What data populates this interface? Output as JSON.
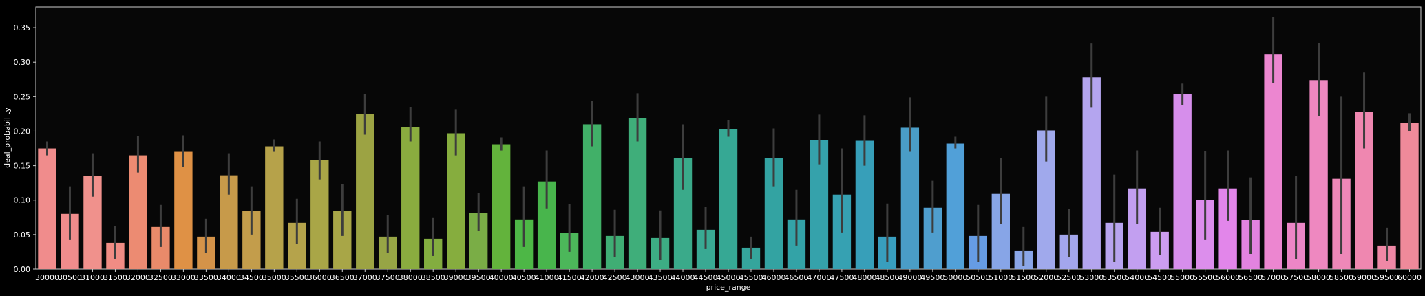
{
  "chart_data": {
    "type": "bar",
    "xlabel": "price_range",
    "ylabel": "deal_probability",
    "ylim": [
      0,
      0.38
    ],
    "yticks": [
      0.0,
      0.05,
      0.1,
      0.15,
      0.2,
      0.25,
      0.3,
      0.35
    ],
    "ytick_labels": [
      "0.00",
      "0.05",
      "0.10",
      "0.15",
      "0.20",
      "0.25",
      "0.30",
      "0.35"
    ],
    "grid": false,
    "categories": [
      "30000",
      "30500",
      "31000",
      "31500",
      "32000",
      "32500",
      "33000",
      "33500",
      "34000",
      "34500",
      "35000",
      "35500",
      "36000",
      "36500",
      "37000",
      "37500",
      "38000",
      "38500",
      "39000",
      "39500",
      "40000",
      "40500",
      "41000",
      "41500",
      "42000",
      "42500",
      "43000",
      "43500",
      "44000",
      "44500",
      "45000",
      "45500",
      "46000",
      "46500",
      "47000",
      "47500",
      "48000",
      "48500",
      "49000",
      "49500",
      "50000",
      "50500",
      "51000",
      "51500",
      "52000",
      "52500",
      "53000",
      "53500",
      "54000",
      "54500",
      "55000",
      "55500",
      "56000",
      "56500",
      "57000",
      "57500",
      "58000",
      "58500",
      "59000",
      "59500",
      "60000"
    ],
    "values": [
      0.175,
      0.08,
      0.135,
      0.038,
      0.165,
      0.061,
      0.17,
      0.047,
      0.136,
      0.084,
      0.178,
      0.067,
      0.158,
      0.084,
      0.225,
      0.047,
      0.206,
      0.044,
      0.197,
      0.081,
      0.181,
      0.072,
      0.127,
      0.052,
      0.21,
      0.048,
      0.219,
      0.045,
      0.161,
      0.057,
      0.203,
      0.031,
      0.161,
      0.072,
      0.187,
      0.108,
      0.186,
      0.047,
      0.205,
      0.089,
      0.182,
      0.048,
      0.109,
      0.027,
      0.201,
      0.05,
      0.278,
      0.067,
      0.117,
      0.054,
      0.254,
      0.1,
      0.117,
      0.071,
      0.311,
      0.067,
      0.274,
      0.131,
      0.228,
      0.034,
      0.212
    ],
    "err_low": [
      0.165,
      0.043,
      0.105,
      0.015,
      0.14,
      0.032,
      0.148,
      0.023,
      0.108,
      0.05,
      0.17,
      0.036,
      0.13,
      0.048,
      0.195,
      0.023,
      0.185,
      0.019,
      0.165,
      0.055,
      0.172,
      0.032,
      0.088,
      0.025,
      0.178,
      0.018,
      0.185,
      0.013,
      0.115,
      0.03,
      0.192,
      0.015,
      0.12,
      0.034,
      0.152,
      0.053,
      0.15,
      0.01,
      0.17,
      0.053,
      0.175,
      0.01,
      0.065,
      0.005,
      0.156,
      0.018,
      0.234,
      0.01,
      0.065,
      0.02,
      0.238,
      0.043,
      0.07,
      0.022,
      0.27,
      0.015,
      0.222,
      0.022,
      0.175,
      0.012,
      0.2
    ],
    "err_high": [
      0.185,
      0.12,
      0.168,
      0.062,
      0.193,
      0.093,
      0.194,
      0.073,
      0.168,
      0.12,
      0.188,
      0.102,
      0.185,
      0.123,
      0.254,
      0.078,
      0.235,
      0.075,
      0.231,
      0.11,
      0.191,
      0.12,
      0.172,
      0.094,
      0.244,
      0.086,
      0.255,
      0.085,
      0.21,
      0.09,
      0.216,
      0.047,
      0.204,
      0.115,
      0.224,
      0.175,
      0.223,
      0.095,
      0.249,
      0.128,
      0.192,
      0.093,
      0.161,
      0.061,
      0.25,
      0.087,
      0.327,
      0.137,
      0.172,
      0.089,
      0.269,
      0.171,
      0.172,
      0.133,
      0.365,
      0.135,
      0.328,
      0.25,
      0.285,
      0.06,
      0.226
    ],
    "colors": [
      "#f08c8c",
      "#f08c8c",
      "#f0918c",
      "#f08c84",
      "#ec8b72",
      "#e98a6a",
      "#df9145",
      "#d49349",
      "#c79a4a",
      "#c39d4b",
      "#b6a24a",
      "#b5a34b",
      "#a9a647",
      "#a8a647",
      "#9ca343",
      "#97a545",
      "#8aac3f",
      "#83ad3f",
      "#86ad3e",
      "#7aad46",
      "#63b33c",
      "#4db746",
      "#48b54c",
      "#4cb75a",
      "#41b068",
      "#3fae74",
      "#3fae7a",
      "#3dad84",
      "#3aaa8a",
      "#39a993",
      "#36a894",
      "#35a59c",
      "#33a3a2",
      "#33a3a7",
      "#35a2ab",
      "#36a1b2",
      "#379fb9",
      "#389ebe",
      "#4a9dc7",
      "#4f9ece",
      "#51a0d8",
      "#669ce4",
      "#87a5e7",
      "#8aa6e8",
      "#a0a9ec",
      "#a3a6ec",
      "#b4a5ef",
      "#b8a4ef",
      "#c29ff0",
      "#cc9df1",
      "#d68eeb",
      "#dc8eec",
      "#e286ea",
      "#e283e0",
      "#ec86d0",
      "#ec86c6",
      "#ee88c0",
      "#ee88b8",
      "#ef87b0",
      "#ef88a6",
      "#ef8a9a"
    ]
  }
}
